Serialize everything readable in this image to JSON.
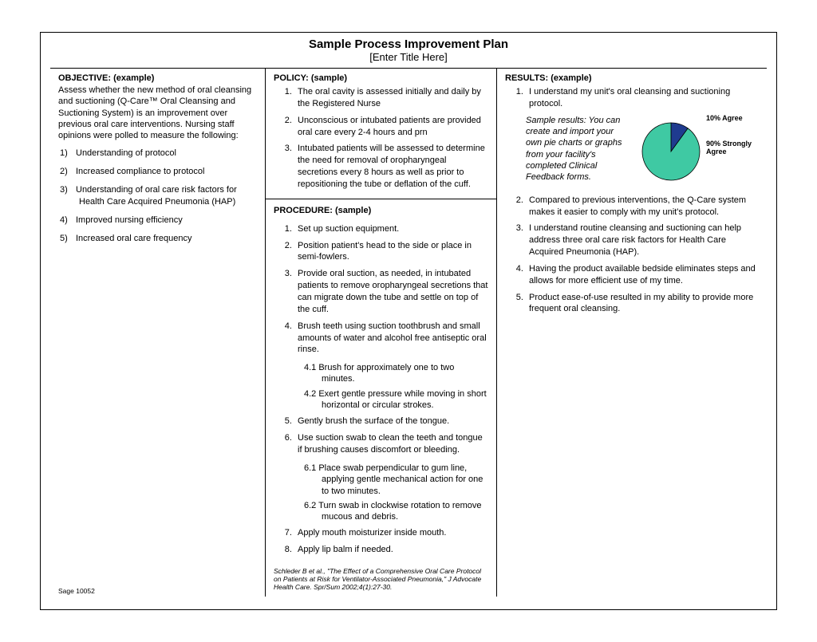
{
  "header": {
    "title": "Sample Process Improvement Plan",
    "subtitle": "[Enter Title Here]"
  },
  "objective": {
    "heading": "OBJECTIVE: (example)",
    "intro": "Assess whether the new method of oral cleansing and suctioning (Q-Care™ Oral Cleansing and Suctioning System) is an improvement over previous oral care interventions. Nursing staff opinions were polled to measure the following:",
    "items": [
      "Understanding of protocol",
      "Increased compliance to protocol",
      "Understanding of oral care risk factors for Health Care Acquired Pneumonia (HAP)",
      "Improved nursing efficiency",
      "Increased oral care frequency"
    ]
  },
  "policy": {
    "heading": "POLICY: (sample)",
    "items": [
      "The oral cavity is assessed initially and daily by the Registered Nurse",
      "Unconscious or intubated patients are provided oral care every 2-4 hours and prn",
      "Intubated patients will be assessed to determine the need for removal of oropharyngeal secretions every 8 hours as well as prior to repositioning the tube or deflation of the cuff."
    ]
  },
  "procedure": {
    "heading": "PROCEDURE: (sample)",
    "items": [
      {
        "text": "Set up suction equipment."
      },
      {
        "text": "Position patient's head to the side or place in semi-fowlers."
      },
      {
        "text": "Provide oral suction, as needed, in intubated patients to remove oropharyngeal secretions that can migrate down the tube and settle on top of the cuff."
      },
      {
        "text": "Brush teeth using suction toothbrush and small amounts of water and alcohol free antiseptic oral rinse.",
        "subs": [
          "4.1 Brush for approximately one to two minutes.",
          "4.2 Exert gentle pressure while moving in short horizontal or circular strokes."
        ]
      },
      {
        "text": "Gently brush the surface of the tongue."
      },
      {
        "text": "Use suction swab to clean the teeth and tongue if brushing causes discomfort or bleeding.",
        "subs": [
          "6.1 Place swab perpendicular to gum line, applying gentle mechanical action for one to two minutes.",
          "6.2 Turn swab in clockwise rotation to remove mucous and debris."
        ]
      },
      {
        "text": "Apply mouth moisturizer inside mouth."
      },
      {
        "text": "Apply lip balm if needed."
      }
    ],
    "citation": "Schleder B et al., \"The Effect of a Comprehensive Oral Care Protocol on Patients at Risk for Ventilator-Associated Pneumonia,\" J Advocate Health Care. Spr/Sum 2002;4(1):27-30."
  },
  "results": {
    "heading": "RESULTS: (example)",
    "first_item": "I understand my unit's oral cleansing and suctioning protocol.",
    "note": "Sample results: You can create and import your own pie charts or graphs from your facility's completed Clinical Feedback forms.",
    "rest": [
      "Compared to previous interventions, the Q-Care system makes it easier to comply with my unit's protocol.",
      "I understand routine cleansing and suctioning can help address three oral care risk factors for Health Care Acquired Pneumonia (HAP).",
      "Having the product available bedside eliminates steps and allows for more efficient use of my time.",
      "Product ease-of-use resulted in my ability to provide more frequent oral cleansing."
    ]
  },
  "pie": {
    "type": "pie",
    "slices": [
      {
        "label": "10% Agree",
        "value": 10,
        "color": "#1f3b8f"
      },
      {
        "label": "90% Strongly Agree",
        "value": 90,
        "color": "#3fc9a3"
      }
    ],
    "radius": 36,
    "stroke": "#000000",
    "label_fontsize": 9,
    "label_fontweight": "bold"
  },
  "footer": {
    "code": "Sage 10052"
  }
}
